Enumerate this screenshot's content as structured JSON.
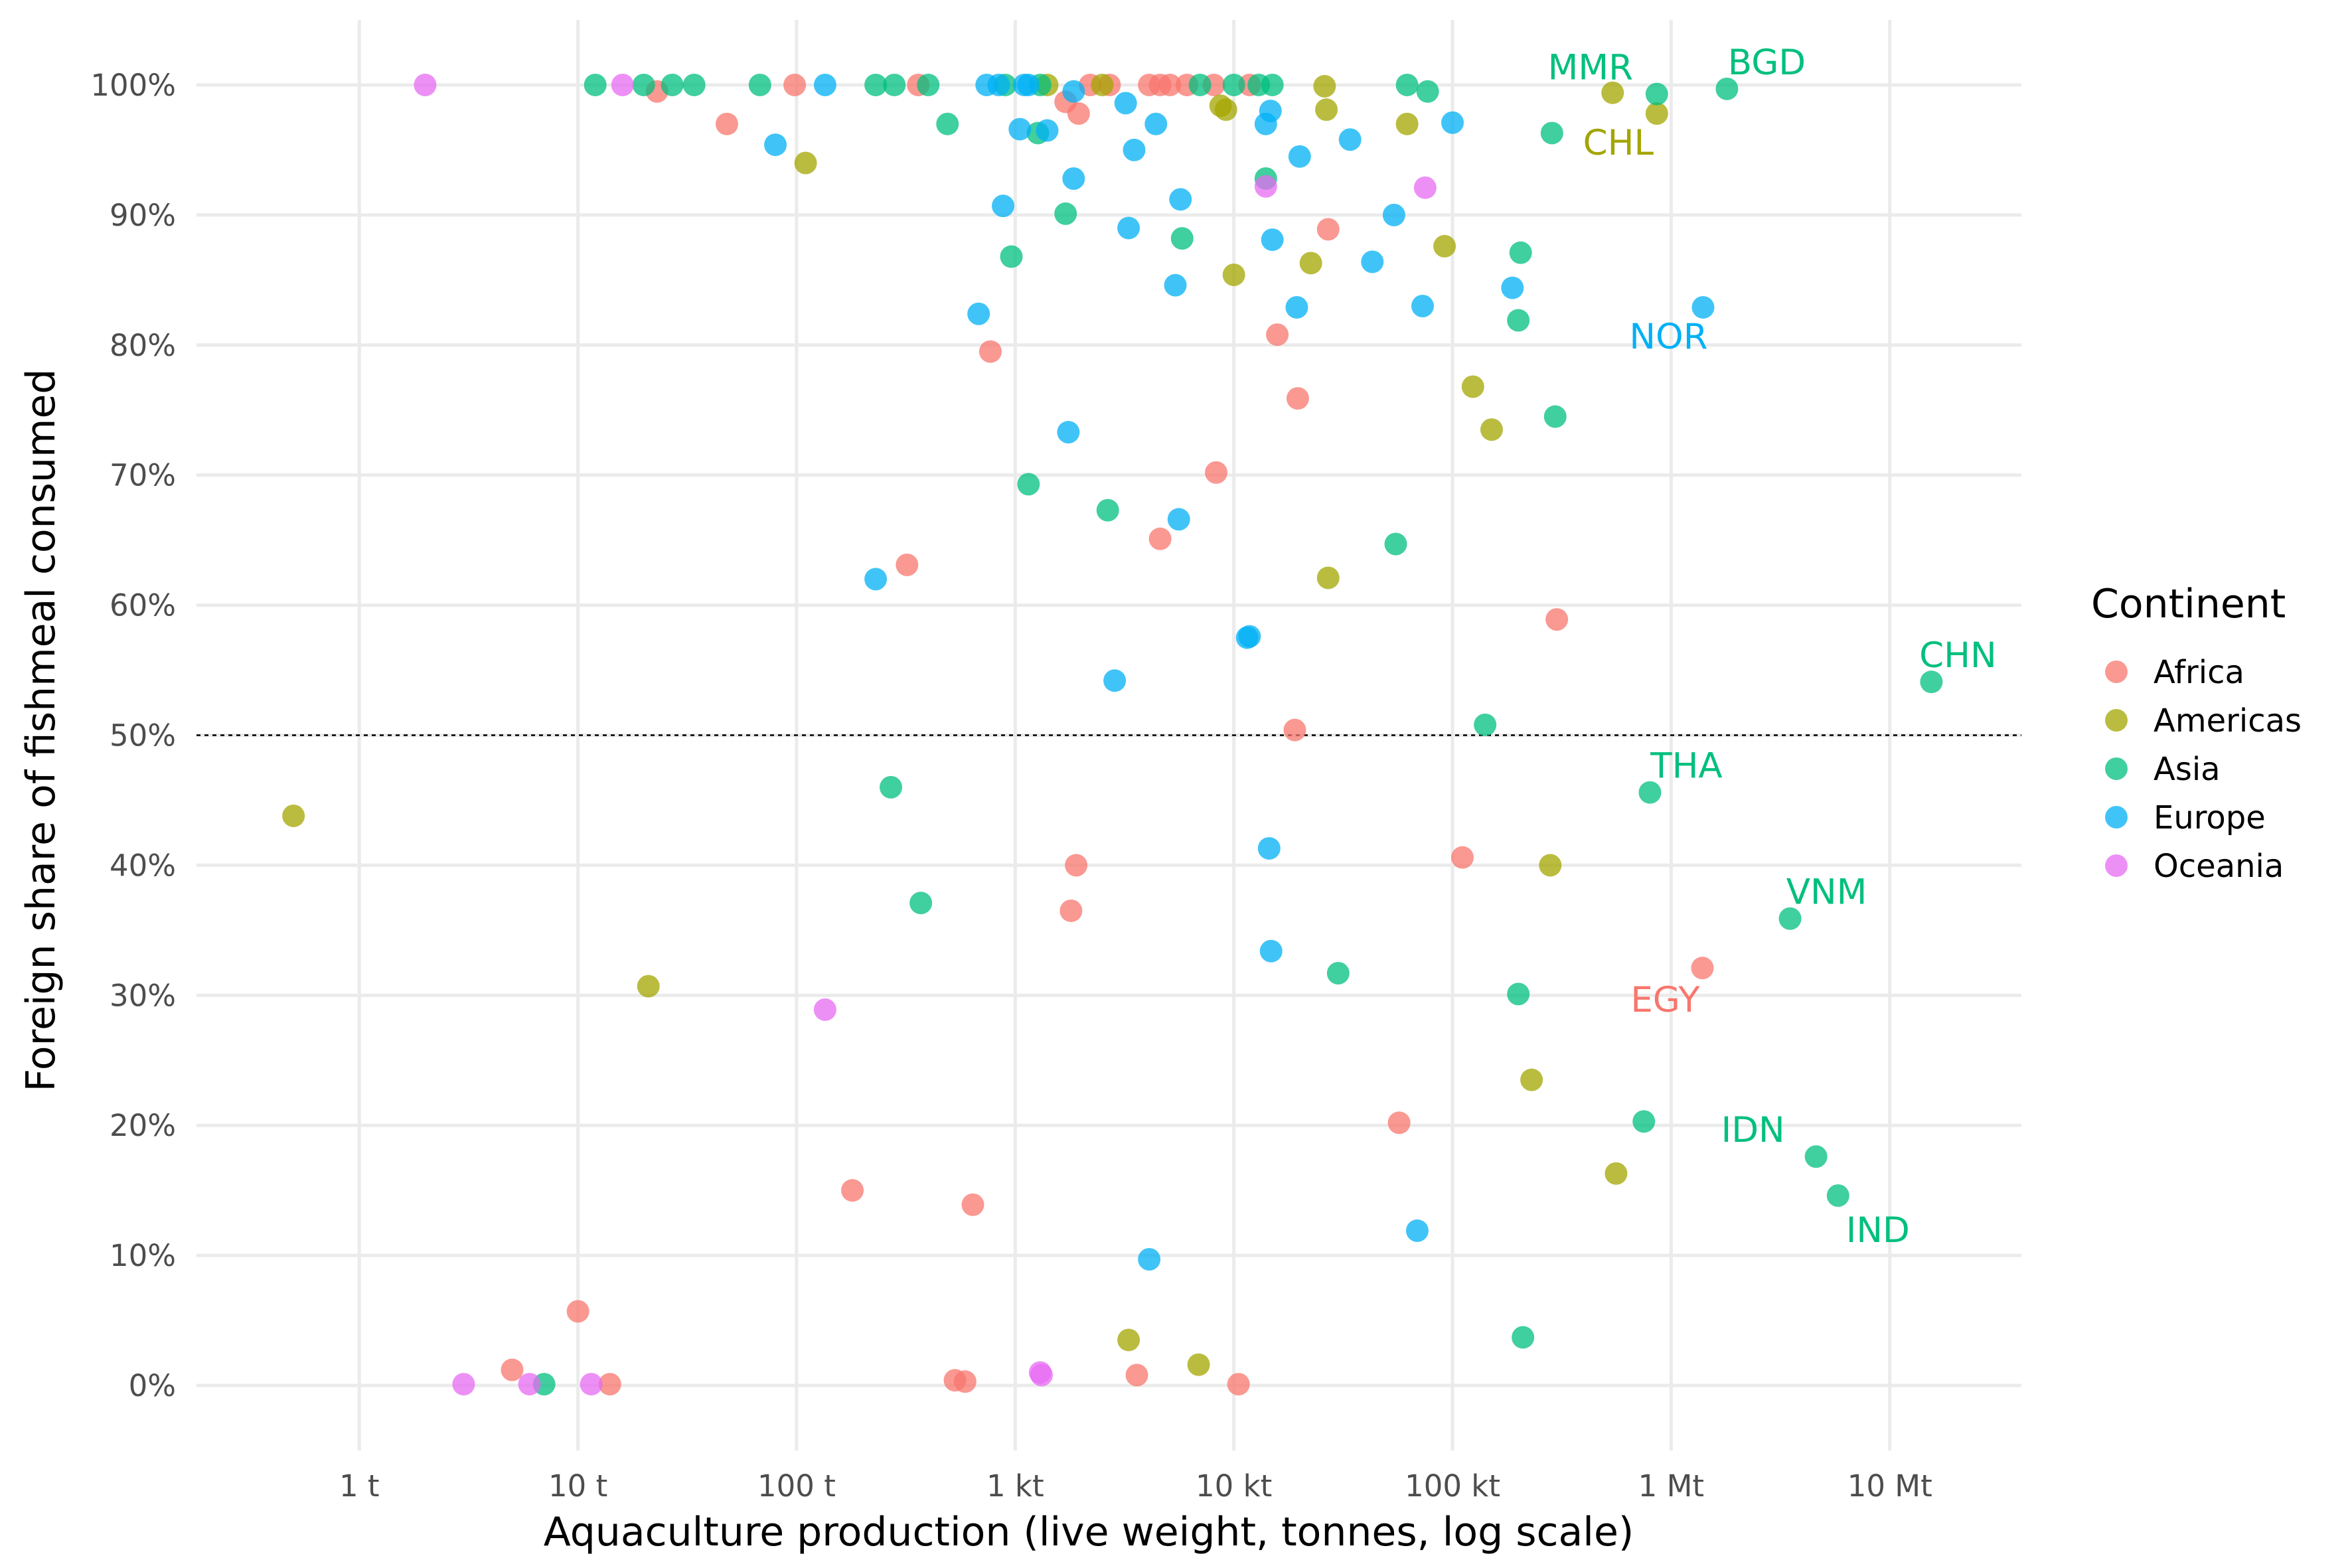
{
  "chart_data": {
    "type": "scatter",
    "xlabel": "Aquaculture production (live weight, tonnes, log scale)",
    "ylabel": "Foreign share of fishmeal consumed",
    "x_scale": "log10",
    "xlim": [
      0.18,
      40000000
    ],
    "ylim": [
      -5,
      105
    ],
    "x_ticks": [
      {
        "value": 1,
        "label": "1 t"
      },
      {
        "value": 10,
        "label": "10 t"
      },
      {
        "value": 100,
        "label": "100 t"
      },
      {
        "value": 1000,
        "label": "1 kt"
      },
      {
        "value": 10000,
        "label": "10 kt"
      },
      {
        "value": 100000,
        "label": "100 kt"
      },
      {
        "value": 1000000,
        "label": "1 Mt"
      },
      {
        "value": 10000000,
        "label": "10 Mt"
      }
    ],
    "y_ticks": [
      {
        "value": 0,
        "label": "0%"
      },
      {
        "value": 10,
        "label": "10%"
      },
      {
        "value": 20,
        "label": "20%"
      },
      {
        "value": 30,
        "label": "30%"
      },
      {
        "value": 40,
        "label": "40%"
      },
      {
        "value": 50,
        "label": "50%"
      },
      {
        "value": 60,
        "label": "60%"
      },
      {
        "value": 70,
        "label": "70%"
      },
      {
        "value": 80,
        "label": "80%"
      },
      {
        "value": 90,
        "label": "90%"
      },
      {
        "value": 100,
        "label": "100%"
      }
    ],
    "reference_line": {
      "y": 50,
      "style": "dashed"
    },
    "grid": true,
    "legend": {
      "title": "Continent",
      "position": "right"
    },
    "series": [
      {
        "name": "Africa",
        "color": "#F8766D",
        "points": [
          [
            23,
            99.5
          ],
          [
            48,
            97
          ],
          [
            98,
            100
          ],
          [
            360,
            100
          ],
          [
            1700,
            98.7
          ],
          [
            1950,
            97.8
          ],
          [
            2200,
            100
          ],
          [
            2700,
            100
          ],
          [
            4100,
            100
          ],
          [
            4600,
            100
          ],
          [
            5100,
            100
          ],
          [
            6100,
            100
          ],
          [
            8100,
            100
          ],
          [
            11800,
            100
          ],
          [
            15800,
            80.8
          ],
          [
            19600,
            75.9
          ],
          [
            27000,
            88.9
          ],
          [
            770,
            79.5
          ],
          [
            8300,
            70.2
          ],
          [
            4600,
            65.1
          ],
          [
            320,
            63.1
          ],
          [
            300000,
            58.9
          ],
          [
            19000,
            50.4
          ],
          [
            1900,
            40
          ],
          [
            1800,
            36.5
          ],
          [
            111000,
            40.6
          ],
          [
            180,
            15
          ],
          [
            640,
            13.9
          ],
          [
            57000,
            20.2
          ],
          [
            1390000,
            32.1
          ],
          [
            10,
            5.7
          ],
          [
            5,
            1.2
          ],
          [
            14,
            0.1
          ],
          [
            530,
            0.4
          ],
          [
            590,
            0.3
          ],
          [
            3600,
            0.8
          ],
          [
            10500,
            0.1
          ]
        ]
      },
      {
        "name": "Americas",
        "color": "#A3A500",
        "points": [
          [
            0.5,
            43.8
          ],
          [
            110,
            94
          ],
          [
            1400,
            100
          ],
          [
            2500,
            100
          ],
          [
            8700,
            98.4
          ],
          [
            9200,
            98.1
          ],
          [
            26000,
            99.9
          ],
          [
            26500,
            98.1
          ],
          [
            62000,
            97
          ],
          [
            92000,
            87.6
          ],
          [
            10000,
            85.4
          ],
          [
            22500,
            86.3
          ],
          [
            540000,
            99.4
          ],
          [
            860000,
            97.8
          ],
          [
            124000,
            76.8
          ],
          [
            151000,
            73.5
          ],
          [
            27000,
            62.1
          ],
          [
            21,
            30.7
          ],
          [
            280000,
            40
          ],
          [
            230000,
            23.5
          ],
          [
            560000,
            16.3
          ],
          [
            3300,
            3.5
          ],
          [
            6900,
            1.6
          ]
        ]
      },
      {
        "name": "Asia",
        "color": "#00BF7D",
        "points": [
          [
            12,
            100
          ],
          [
            20,
            100
          ],
          [
            27,
            100
          ],
          [
            34,
            100
          ],
          [
            68,
            100
          ],
          [
            230,
            100
          ],
          [
            280,
            100
          ],
          [
            400,
            100
          ],
          [
            900,
            100
          ],
          [
            1300,
            100
          ],
          [
            7000,
            100
          ],
          [
            10000,
            100
          ],
          [
            13000,
            100
          ],
          [
            15000,
            100
          ],
          [
            62000,
            100
          ],
          [
            77000,
            99.5
          ],
          [
            490,
            97
          ],
          [
            1270,
            96.3
          ],
          [
            285000,
            96.3
          ],
          [
            860000,
            99.3
          ],
          [
            1800000,
            99.7
          ],
          [
            960,
            86.8
          ],
          [
            1700,
            90.1
          ],
          [
            5800,
            88.2
          ],
          [
            14000,
            92.8
          ],
          [
            205000,
            87.1
          ],
          [
            200000,
            81.9
          ],
          [
            295000,
            74.5
          ],
          [
            1150,
            69.3
          ],
          [
            2650,
            67.3
          ],
          [
            55000,
            64.7
          ],
          [
            141000,
            50.8
          ],
          [
            800000,
            45.6
          ],
          [
            270,
            46
          ],
          [
            370,
            37.1
          ],
          [
            3500000,
            35.9
          ],
          [
            30000,
            31.7
          ],
          [
            200000,
            30.1
          ],
          [
            750000,
            20.3
          ],
          [
            4600000,
            17.6
          ],
          [
            5800000,
            14.6
          ],
          [
            210000,
            3.7
          ],
          [
            7,
            0.1
          ],
          [
            15500000,
            54.1
          ]
        ]
      },
      {
        "name": "Europe",
        "color": "#00B0F6",
        "points": [
          [
            135,
            100
          ],
          [
            740,
            100
          ],
          [
            840,
            100
          ],
          [
            1100,
            100
          ],
          [
            1150,
            100
          ],
          [
            1850,
            99.5
          ],
          [
            80,
            95.4
          ],
          [
            1050,
            96.6
          ],
          [
            1400,
            96.5
          ],
          [
            3200,
            98.6
          ],
          [
            3500,
            95
          ],
          [
            4400,
            97
          ],
          [
            14000,
            97
          ],
          [
            14700,
            98
          ],
          [
            20000,
            94.5
          ],
          [
            34000,
            95.8
          ],
          [
            100000,
            97.1
          ],
          [
            880,
            90.7
          ],
          [
            1850,
            92.8
          ],
          [
            3300,
            89
          ],
          [
            5700,
            91.2
          ],
          [
            15000,
            88.1
          ],
          [
            54000,
            90
          ],
          [
            43000,
            86.4
          ],
          [
            5400,
            84.6
          ],
          [
            19400,
            82.9
          ],
          [
            73000,
            83
          ],
          [
            188000,
            84.4
          ],
          [
            1400000,
            82.9
          ],
          [
            680,
            82.4
          ],
          [
            1750,
            73.3
          ],
          [
            5600,
            66.6
          ],
          [
            11500,
            57.5
          ],
          [
            11800,
            57.6
          ],
          [
            2850,
            54.2
          ],
          [
            230,
            62
          ],
          [
            14500,
            41.3
          ],
          [
            14800,
            33.4
          ],
          [
            69000,
            11.9
          ],
          [
            4100,
            9.7
          ]
        ]
      },
      {
        "name": "Oceania",
        "color": "#E76BF3",
        "points": [
          [
            2,
            100
          ],
          [
            16,
            100
          ],
          [
            14000,
            92.2
          ],
          [
            75000,
            92.1
          ],
          [
            135,
            28.9
          ],
          [
            3,
            0.1
          ],
          [
            6,
            0.1
          ],
          [
            11.5,
            0.1
          ],
          [
            1300,
            1
          ],
          [
            1320,
            0.8
          ]
        ]
      }
    ],
    "annotations": [
      {
        "text": "MMR",
        "series": "Asia",
        "x": 860000,
        "y": 99.3
      },
      {
        "text": "BGD",
        "series": "Asia",
        "x": 1800000,
        "y": 99.7
      },
      {
        "text": "CHL",
        "series": "Americas",
        "x": 860000,
        "y": 97.8
      },
      {
        "text": "NOR",
        "series": "Europe",
        "x": 1400000,
        "y": 82.9
      },
      {
        "text": "CHN",
        "series": "Asia",
        "x": 15500000,
        "y": 54.1
      },
      {
        "text": "THA",
        "series": "Asia",
        "x": 800000,
        "y": 45.6
      },
      {
        "text": "VNM",
        "series": "Asia",
        "x": 3500000,
        "y": 35.9
      },
      {
        "text": "EGY",
        "series": "Africa",
        "x": 1390000,
        "y": 32.1
      },
      {
        "text": "IDN",
        "series": "Asia",
        "x": 4600000,
        "y": 17.6
      },
      {
        "text": "IND",
        "series": "Asia",
        "x": 5800000,
        "y": 14.6
      }
    ]
  }
}
